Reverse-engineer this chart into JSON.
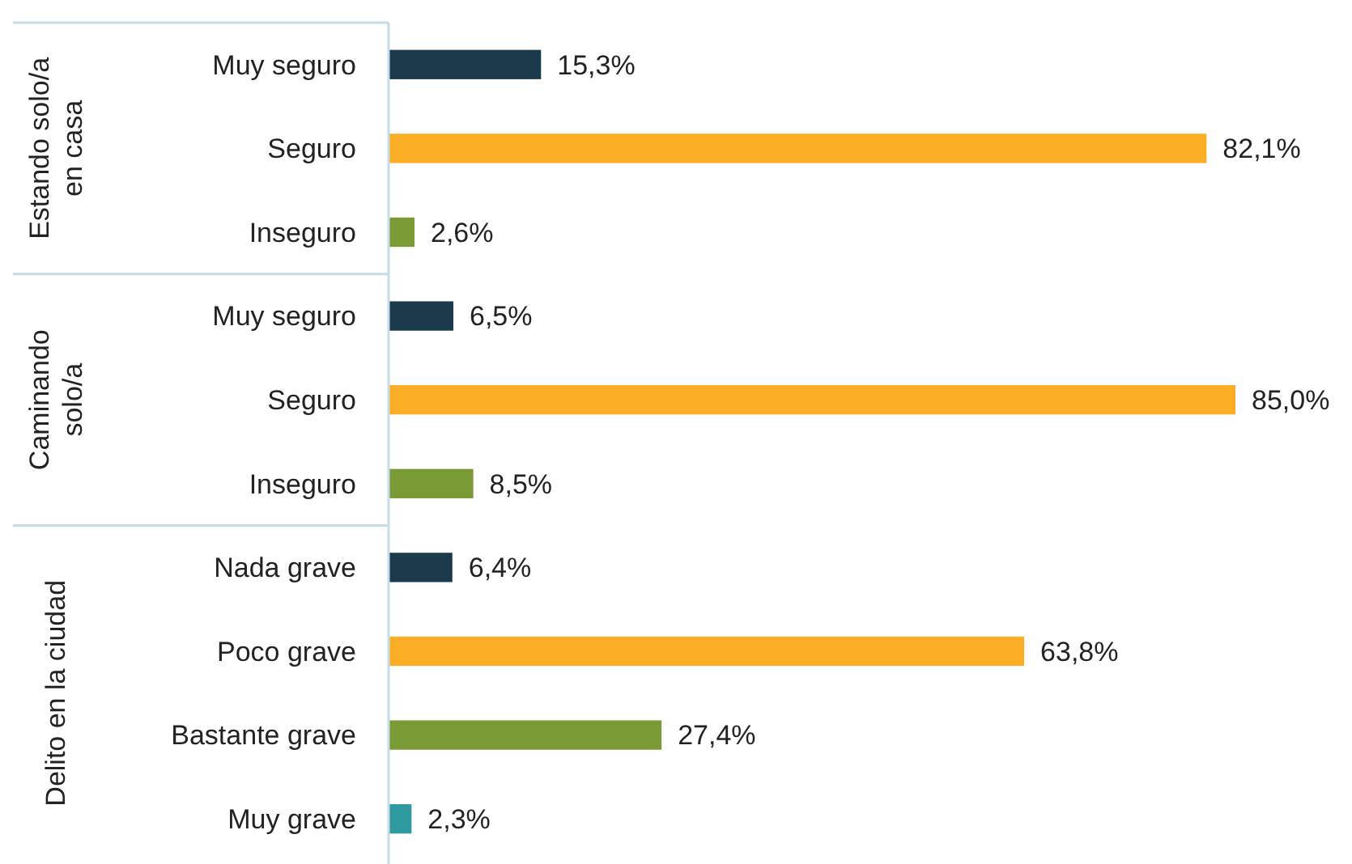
{
  "chart_data": [
    {
      "type": "bar",
      "orientation": "horizontal",
      "ylabel": "Estando solo/a en casa",
      "categories": [
        "Muy seguro",
        "Seguro",
        "Inseguro"
      ],
      "values": [
        15.3,
        82.1,
        2.6
      ],
      "colors": [
        "#1b3a4b",
        "#fbad25",
        "#7a9a35"
      ],
      "value_labels": [
        "15,3%",
        "82,1%",
        "2,6%"
      ]
    },
    {
      "type": "bar",
      "orientation": "horizontal",
      "ylabel": "Caminando solo/a",
      "categories": [
        "Muy seguro",
        "Seguro",
        "Inseguro"
      ],
      "values": [
        6.5,
        85.0,
        8.5
      ],
      "colors": [
        "#1b3a4b",
        "#fbad25",
        "#7a9a35"
      ],
      "value_labels": [
        "6,5%",
        "85,0%",
        "8,5%"
      ]
    },
    {
      "type": "bar",
      "orientation": "horizontal",
      "ylabel": "Delito en la ciudad",
      "categories": [
        "Nada grave",
        "Poco grave",
        "Bastante grave",
        "Muy grave"
      ],
      "values": [
        6.4,
        63.8,
        27.4,
        2.3
      ],
      "colors": [
        "#1b3a4b",
        "#fbad25",
        "#7a9a35",
        "#2e9aa0"
      ],
      "value_labels": [
        "6,4%",
        "63,8%",
        "27,4%",
        "2,3%"
      ]
    }
  ]
}
